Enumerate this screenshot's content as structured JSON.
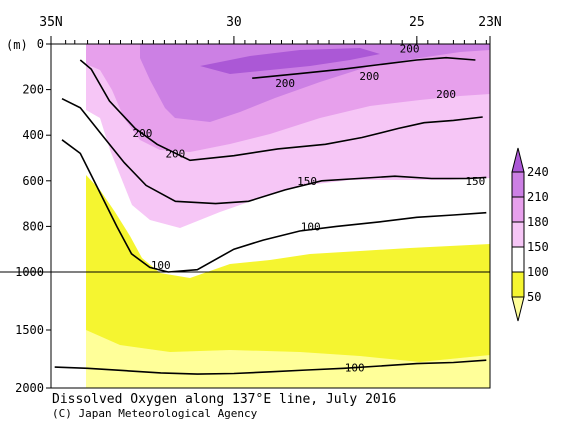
{
  "chart_data": {
    "type": "heatmap",
    "title": "Dissolved Oxygen along 137°E line, July 2016",
    "credit": "(C) Japan Meteorological Agency",
    "xaxis": {
      "ticks": [
        {
          "value": 35,
          "label": "35N"
        },
        {
          "value": 30,
          "label": "30"
        },
        {
          "value": 25,
          "label": "25"
        },
        {
          "value": 23,
          "label": "23N"
        }
      ],
      "range": [
        35,
        23
      ]
    },
    "yaxis": {
      "unit_label": "(m)",
      "ticks": [
        0,
        200,
        400,
        600,
        800,
        1000,
        1500,
        2000
      ],
      "upper_range": [
        0,
        1000
      ],
      "lower_range": [
        1000,
        2000
      ],
      "inverted": true,
      "scale_break_at": 1000
    },
    "colorbar": {
      "levels": [
        50,
        100,
        150,
        180,
        210,
        240
      ],
      "colors": [
        "#ffff99",
        "#f5f530",
        "#ffffff",
        "#f6c6f6",
        "#e7a0ec",
        "#cc80e4",
        "#ab58d6"
      ]
    },
    "contour_labels": [
      {
        "value": 200,
        "lat": 25.2,
        "depth": 20
      },
      {
        "value": 200,
        "lat": 28.6,
        "depth": 170
      },
      {
        "value": 200,
        "lat": 26.3,
        "depth": 140
      },
      {
        "value": 200,
        "lat": 24.2,
        "depth": 220
      },
      {
        "value": 200,
        "lat": 32.5,
        "depth": 390
      },
      {
        "value": 200,
        "lat": 31.6,
        "depth": 480
      },
      {
        "value": 150,
        "lat": 28.0,
        "depth": 600
      },
      {
        "value": 150,
        "lat": 23.4,
        "depth": 600
      },
      {
        "value": 100,
        "lat": 27.9,
        "depth": 800
      },
      {
        "value": 100,
        "lat": 32.0,
        "depth": 970
      },
      {
        "value": 100,
        "lat": 26.7,
        "depth": 1825
      }
    ],
    "isolines": [
      {
        "value": 200,
        "points": [
          [
            34.2,
            70
          ],
          [
            33.9,
            110
          ],
          [
            33.4,
            250
          ],
          [
            32.7,
            370
          ],
          [
            32.1,
            440
          ],
          [
            31.2,
            510
          ],
          [
            30.0,
            490
          ],
          [
            28.8,
            460
          ],
          [
            27.5,
            440
          ],
          [
            26.5,
            410
          ],
          [
            25.5,
            370
          ],
          [
            24.8,
            345
          ],
          [
            24.0,
            335
          ],
          [
            23.2,
            320
          ]
        ]
      },
      {
        "value": 200,
        "points": [
          [
            29.5,
            150
          ],
          [
            28.2,
            130
          ],
          [
            27.0,
            110
          ],
          [
            26.0,
            90
          ],
          [
            25.0,
            70
          ],
          [
            24.2,
            60
          ],
          [
            23.4,
            70
          ]
        ]
      },
      {
        "value": 150,
        "points": [
          [
            34.7,
            240
          ],
          [
            34.2,
            280
          ],
          [
            33.6,
            400
          ],
          [
            33.0,
            520
          ],
          [
            32.4,
            620
          ],
          [
            31.6,
            690
          ],
          [
            30.5,
            700
          ],
          [
            29.6,
            690
          ],
          [
            28.6,
            640
          ],
          [
            27.6,
            600
          ],
          [
            26.6,
            590
          ],
          [
            25.6,
            580
          ],
          [
            24.6,
            590
          ],
          [
            23.6,
            590
          ],
          [
            23.1,
            585
          ]
        ]
      },
      {
        "value": 100,
        "points": [
          [
            34.7,
            420
          ],
          [
            34.2,
            480
          ],
          [
            33.7,
            640
          ],
          [
            33.2,
            800
          ],
          [
            32.8,
            920
          ],
          [
            32.3,
            980
          ],
          [
            31.8,
            1000
          ],
          [
            31.0,
            990
          ],
          [
            30.0,
            900
          ],
          [
            29.2,
            860
          ],
          [
            28.2,
            820
          ],
          [
            27.2,
            800
          ],
          [
            26.0,
            780
          ],
          [
            25.0,
            760
          ],
          [
            24.0,
            750
          ],
          [
            23.1,
            740
          ]
        ]
      },
      {
        "value": 100,
        "points": [
          [
            34.9,
            1820
          ],
          [
            34.0,
            1830
          ],
          [
            33.0,
            1850
          ],
          [
            32.0,
            1870
          ],
          [
            31.0,
            1880
          ],
          [
            30.0,
            1875
          ],
          [
            29.0,
            1860
          ],
          [
            28.0,
            1845
          ],
          [
            27.0,
            1830
          ],
          [
            26.0,
            1810
          ],
          [
            25.0,
            1790
          ],
          [
            24.0,
            1780
          ],
          [
            23.1,
            1760
          ]
        ]
      }
    ],
    "station_markers": [
      34.6,
      34.35,
      34.0,
      33.7,
      33.4,
      33.1,
      32.8,
      32.5,
      32.2,
      31.9,
      31.6,
      31.3,
      31.0,
      30.7,
      30.4,
      30.0,
      29.7,
      29.4,
      29.0,
      28.7,
      28.4,
      28.0,
      27.7,
      27.4,
      27.0,
      26.7,
      26.4,
      26.0,
      25.7,
      25.4,
      25.0,
      24.7,
      24.4,
      24.0,
      23.7,
      23.4,
      23.1
    ]
  }
}
